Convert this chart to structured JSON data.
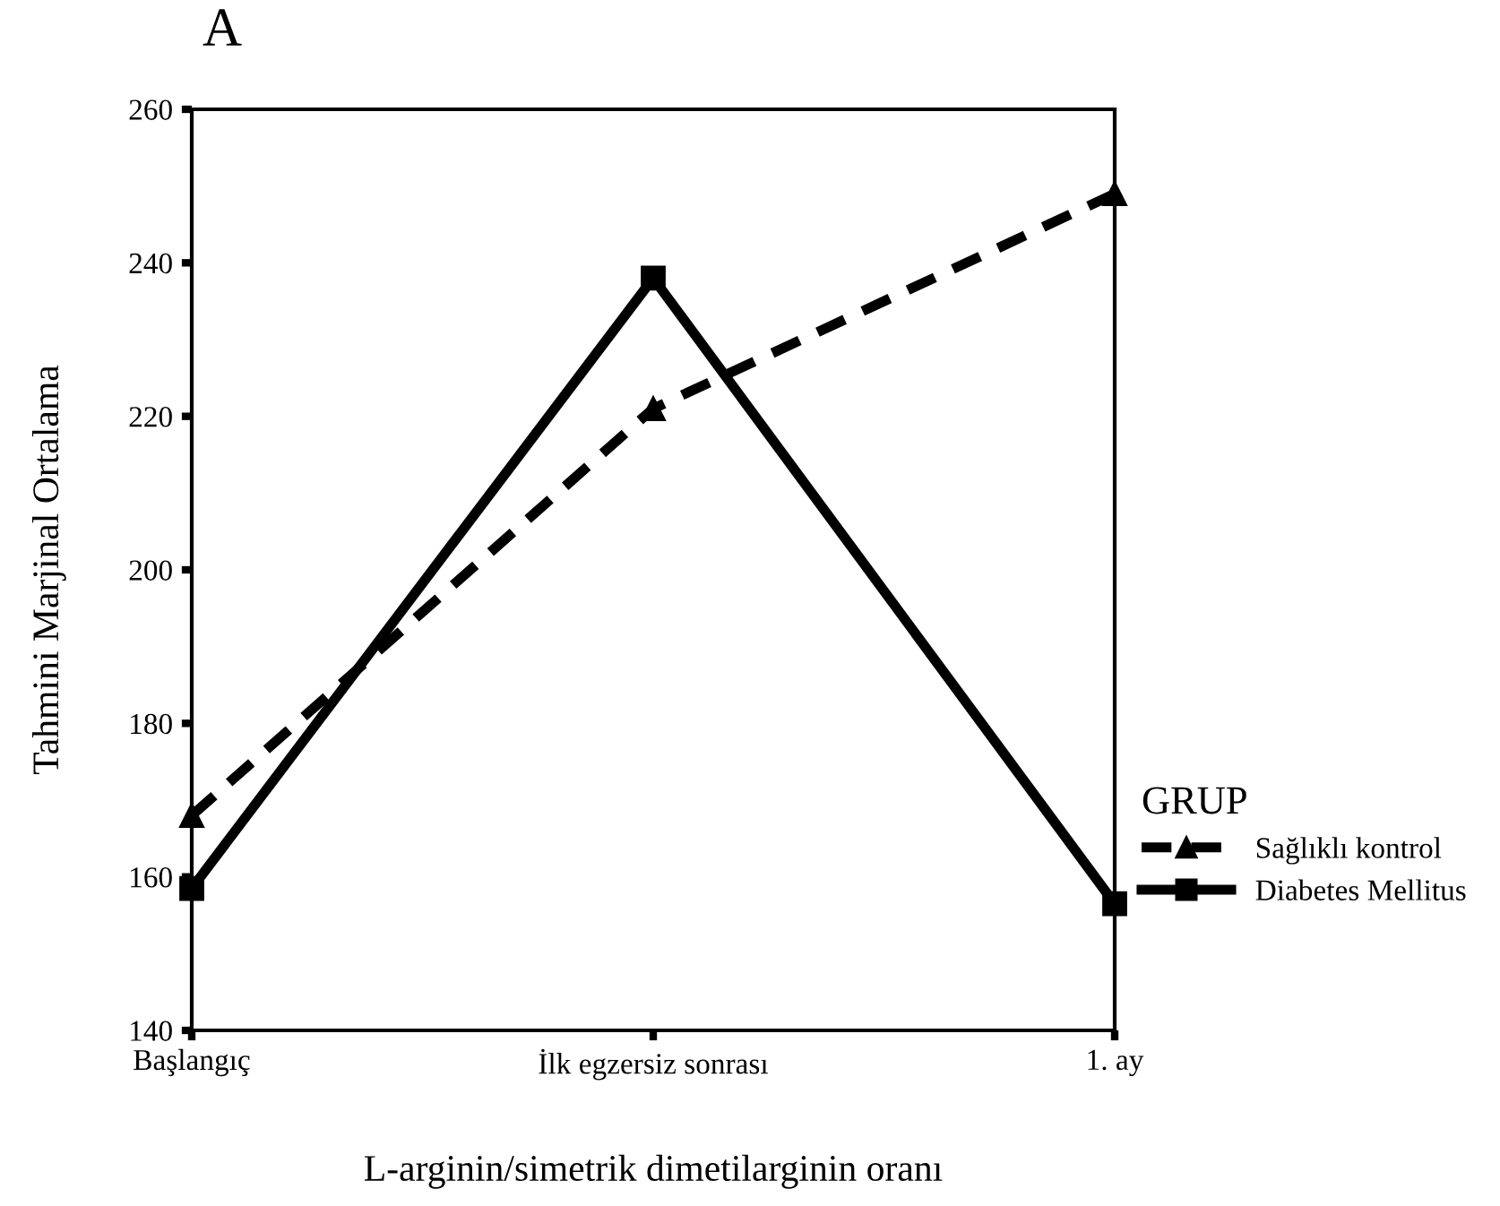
{
  "chart_data": {
    "type": "line",
    "title": "A",
    "xlabel": "L-arginin/simetrik dimetilarginin oranı",
    "ylabel": "Tahmini Marjinal Ortalama",
    "legend_title": "GRUP",
    "categories": [
      "Başlangıç",
      "İlk egzersiz sonrası",
      "1. ay"
    ],
    "series": [
      {
        "name": "Sağlıklı kontrol",
        "color": "#000000",
        "values": [
          168,
          221,
          249
        ],
        "marker": "triangle",
        "line_style": "dashed"
      },
      {
        "name": "Diabetes Mellitus",
        "color": "#000000",
        "values": [
          158.5,
          238,
          156.5
        ],
        "marker": "square",
        "line_style": "solid"
      }
    ],
    "ylim": [
      140,
      260
    ],
    "yticks": [
      140,
      160,
      180,
      200,
      220,
      240,
      260
    ],
    "grid": false,
    "legend": "right"
  }
}
